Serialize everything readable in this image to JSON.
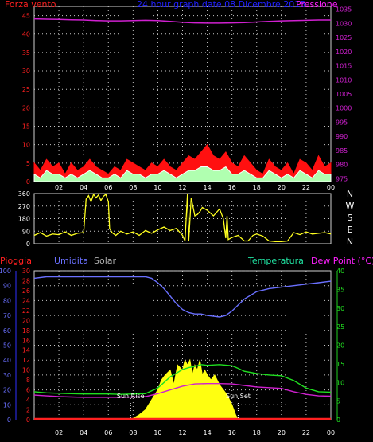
{
  "page": {
    "title": "24 hour graph date 08 Dicembre 2015"
  },
  "colors": {
    "background": "#000000",
    "frame": "#d0d0d0",
    "grid": "#c8c8c8",
    "gust": "#ff1010",
    "wind": "#ffffff",
    "wind_fill": "#b0ffb0",
    "pressure": "#d020d0",
    "direction": "#ffff20",
    "humidity": "#6a70ff",
    "temperature": "#20e020",
    "dewpoint": "#d020d0",
    "solar": "#ffff10",
    "rain": "#ff2020",
    "label_red": "#ff2020",
    "label_blue": "#2020ff",
    "label_pink": "#ff20ff",
    "label_green": "#20e0a0",
    "label_gray": "#b0b0b0"
  },
  "x_tick_labels": [
    "02",
    "04",
    "06",
    "08",
    "10",
    "12",
    "14",
    "16",
    "18",
    "20",
    "22",
    "00"
  ],
  "chart_data": [
    {
      "id": "wind_pressure",
      "type": "line",
      "left_axis_label": "Forza vento",
      "right_axis_label": "Pressione",
      "left_ticks": [
        0,
        5,
        10,
        15,
        20,
        25,
        30,
        35,
        40,
        45
      ],
      "left_range": [
        0,
        47.5
      ],
      "right_ticks": [
        975,
        980,
        985,
        990,
        995,
        1000,
        1005,
        1010,
        1015,
        1020,
        1025,
        1030,
        1035
      ],
      "right_range": [
        974,
        1036
      ],
      "x_range": [
        0,
        24
      ],
      "series": [
        {
          "key": "pressure",
          "axis": "right",
          "x": [
            0,
            1,
            2,
            3,
            4,
            5,
            6,
            7,
            8,
            9,
            10,
            11,
            12,
            13,
            14,
            15,
            16,
            17,
            18,
            19,
            20,
            21,
            22,
            23,
            24
          ],
          "y": [
            1031.6,
            1031.5,
            1031.4,
            1031.3,
            1031.2,
            1031.0,
            1030.9,
            1030.9,
            1031.0,
            1031.1,
            1031.0,
            1030.7,
            1030.4,
            1030.2,
            1030.1,
            1030.1,
            1030.2,
            1030.3,
            1030.5,
            1030.7,
            1030.9,
            1031.0,
            1031.1,
            1031.2,
            1031.2
          ]
        },
        {
          "key": "gust",
          "axis": "left",
          "x": [
            0,
            0.5,
            1,
            1.5,
            2,
            2.5,
            3,
            3.5,
            4,
            4.5,
            5,
            5.5,
            6,
            6.5,
            7,
            7.5,
            8,
            8.5,
            9,
            9.5,
            10,
            10.5,
            11,
            11.5,
            12,
            12.5,
            13,
            13.5,
            14,
            14.5,
            15,
            15.5,
            16,
            16.5,
            17,
            17.5,
            18,
            18.5,
            19,
            19.5,
            20,
            20.5,
            21,
            21.5,
            22,
            22.5,
            23,
            23.5,
            24
          ],
          "y": [
            5,
            3,
            6,
            4,
            5,
            2,
            5,
            3,
            4,
            6,
            4,
            3,
            2,
            4,
            3,
            6,
            5,
            4,
            3,
            5,
            4,
            6,
            4,
            3,
            5,
            7,
            6,
            8,
            10,
            7,
            6,
            8,
            5,
            4,
            7,
            5,
            3,
            2,
            6,
            4,
            3,
            5,
            2,
            6,
            5,
            3,
            7,
            4,
            5
          ]
        },
        {
          "key": "wind",
          "axis": "left",
          "x": [
            0,
            0.5,
            1,
            1.5,
            2,
            2.5,
            3,
            3.5,
            4,
            4.5,
            5,
            5.5,
            6,
            6.5,
            7,
            7.5,
            8,
            8.5,
            9,
            9.5,
            10,
            10.5,
            11,
            11.5,
            12,
            12.5,
            13,
            13.5,
            14,
            14.5,
            15,
            15.5,
            16,
            16.5,
            17,
            17.5,
            18,
            18.5,
            19,
            19.5,
            20,
            20.5,
            21,
            21.5,
            22,
            22.5,
            23,
            23.5,
            24
          ],
          "y": [
            2,
            1,
            3,
            2,
            2,
            1,
            2,
            1,
            2,
            3,
            2,
            1,
            1,
            2,
            1,
            3,
            2,
            2,
            1,
            2,
            2,
            3,
            2,
            1,
            2,
            3,
            3,
            4,
            4,
            3,
            3,
            4,
            2,
            2,
            3,
            2,
            1,
            1,
            3,
            2,
            1,
            2,
            1,
            3,
            2,
            1,
            3,
            2,
            2
          ]
        }
      ]
    },
    {
      "id": "direction",
      "type": "line",
      "left_ticks": [
        0,
        90,
        180,
        270,
        360
      ],
      "left_range": [
        0,
        360
      ],
      "right_labels": [
        "N",
        "W",
        "S",
        "E",
        "N"
      ],
      "x_range": [
        0,
        24
      ],
      "series": [
        {
          "key": "direction",
          "x": [
            0,
            0.5,
            1,
            1.5,
            2,
            2.5,
            3,
            3.5,
            4,
            4.2,
            4.4,
            4.6,
            4.8,
            5,
            5.2,
            5.4,
            5.6,
            5.8,
            6,
            6.1,
            6.3,
            6.6,
            7,
            7.5,
            8,
            8.5,
            9,
            9.5,
            10,
            10.5,
            11,
            11.5,
            12,
            12.2,
            12.4,
            12.5,
            12.7,
            13,
            13.2,
            13.4,
            13.6,
            14,
            14.5,
            15,
            15.3,
            15.5,
            15.6,
            15.7,
            16,
            16.5,
            17,
            17.3,
            17.5,
            17.7,
            18,
            18.5,
            19,
            19.5,
            20,
            20.5,
            21,
            21.5,
            22,
            22.5,
            23,
            23.5,
            24
          ],
          "y": [
            60,
            80,
            55,
            70,
            65,
            85,
            60,
            75,
            80,
            320,
            345,
            300,
            355,
            330,
            350,
            310,
            340,
            355,
            300,
            110,
            80,
            60,
            90,
            70,
            85,
            60,
            95,
            75,
            100,
            120,
            95,
            110,
            60,
            20,
            355,
            20,
            330,
            200,
            210,
            230,
            260,
            240,
            200,
            250,
            180,
            40,
            200,
            30,
            45,
            60,
            20,
            20,
            40,
            60,
            70,
            55,
            20,
            15,
            15,
            20,
            80,
            65,
            85,
            70,
            75,
            80,
            70
          ]
        }
      ]
    },
    {
      "id": "temp_hum",
      "type": "line",
      "left_outer_label": "Pioggia",
      "left_inner_label": "Umidita",
      "solar_label": "Solar",
      "right_inner_label": "Temperatura",
      "right_outer_label": "Dew Point (°C)",
      "left_outer_ticks": [
        0,
        10,
        20,
        30,
        40,
        50,
        60,
        70,
        80,
        90,
        100
      ],
      "left_outer_range": [
        0,
        100
      ],
      "left_inner_ticks": [
        0,
        2,
        4,
        6,
        8,
        10,
        12,
        14,
        16,
        18,
        20,
        22,
        24,
        26,
        28,
        30
      ],
      "left_inner_range": [
        0,
        30
      ],
      "right_ticks": [
        0,
        5,
        10,
        15,
        20,
        25,
        30,
        35,
        40
      ],
      "right_range": [
        0,
        40
      ],
      "x_range": [
        0,
        24
      ],
      "annotations": [
        {
          "text": "Sun Rise",
          "x": 7.8
        },
        {
          "text": "Sun Set",
          "x": 16.5
        }
      ],
      "series": [
        {
          "key": "humidity",
          "axis": "left_outer",
          "x": [
            0,
            1,
            2,
            3,
            4,
            5,
            6,
            7,
            8,
            9,
            9.5,
            10,
            10.5,
            11,
            11.5,
            12,
            12.5,
            13,
            13.5,
            14,
            15,
            15.5,
            16,
            16.5,
            17,
            18,
            19,
            20,
            21,
            22,
            23,
            24
          ],
          "y": [
            95,
            96,
            96,
            96,
            96,
            96,
            96,
            96,
            96,
            96,
            95,
            92,
            88,
            83,
            78,
            74,
            72,
            71,
            71,
            70,
            69,
            70,
            73,
            77,
            81,
            86,
            88,
            89,
            90,
            91,
            92,
            93
          ]
        },
        {
          "key": "temperature",
          "axis": "right",
          "x": [
            0,
            1,
            2,
            3,
            4,
            5,
            6,
            7,
            8,
            9,
            10,
            10.5,
            11,
            11.5,
            12,
            12.5,
            13,
            13.5,
            14,
            15,
            16,
            16.5,
            17,
            18,
            19,
            20,
            21,
            22,
            23,
            24
          ],
          "y": [
            7.5,
            7.2,
            7.1,
            7.0,
            6.9,
            6.9,
            6.9,
            6.8,
            6.9,
            7.0,
            8.5,
            10,
            11.5,
            12.5,
            13.5,
            14.0,
            14.3,
            14.8,
            14.6,
            14.8,
            14.5,
            13.8,
            13,
            12.4,
            12,
            11.8,
            10.5,
            8.5,
            7.5,
            7.4
          ]
        },
        {
          "key": "dewpoint",
          "axis": "right",
          "x": [
            0,
            1,
            2,
            3,
            4,
            5,
            6,
            7,
            8,
            9,
            10,
            11,
            12,
            13,
            14,
            15,
            16,
            17,
            18,
            19,
            20,
            21,
            22,
            23,
            24
          ],
          "y": [
            6.6,
            6.4,
            6.2,
            6.1,
            6.0,
            6.0,
            6.0,
            6.0,
            6.1,
            6.2,
            7.0,
            8.0,
            9.0,
            9.6,
            9.7,
            9.7,
            9.6,
            9.2,
            8.8,
            8.6,
            8.4,
            7.5,
            6.8,
            6.4,
            6.3
          ]
        },
        {
          "key": "solar",
          "axis": "left_inner",
          "x": [
            7.8,
            8.5,
            9,
            9.5,
            10,
            10.3,
            10.6,
            11,
            11.3,
            11.6,
            12,
            12.2,
            12.4,
            12.6,
            12.8,
            13,
            13.2,
            13.4,
            13.6,
            13.8,
            14,
            14.3,
            14.6,
            15,
            15.3,
            15.6,
            16,
            16.3,
            16.5
          ],
          "y": [
            0,
            1,
            2,
            4,
            6,
            8,
            9,
            10,
            7,
            11,
            10,
            12,
            11,
            12,
            9,
            11,
            10,
            12,
            9,
            10,
            9,
            8,
            9,
            7,
            6,
            5,
            3,
            1,
            0
          ]
        },
        {
          "key": "rain",
          "axis": "left_outer",
          "x": [
            0,
            24
          ],
          "y": [
            0,
            0
          ]
        }
      ]
    }
  ]
}
